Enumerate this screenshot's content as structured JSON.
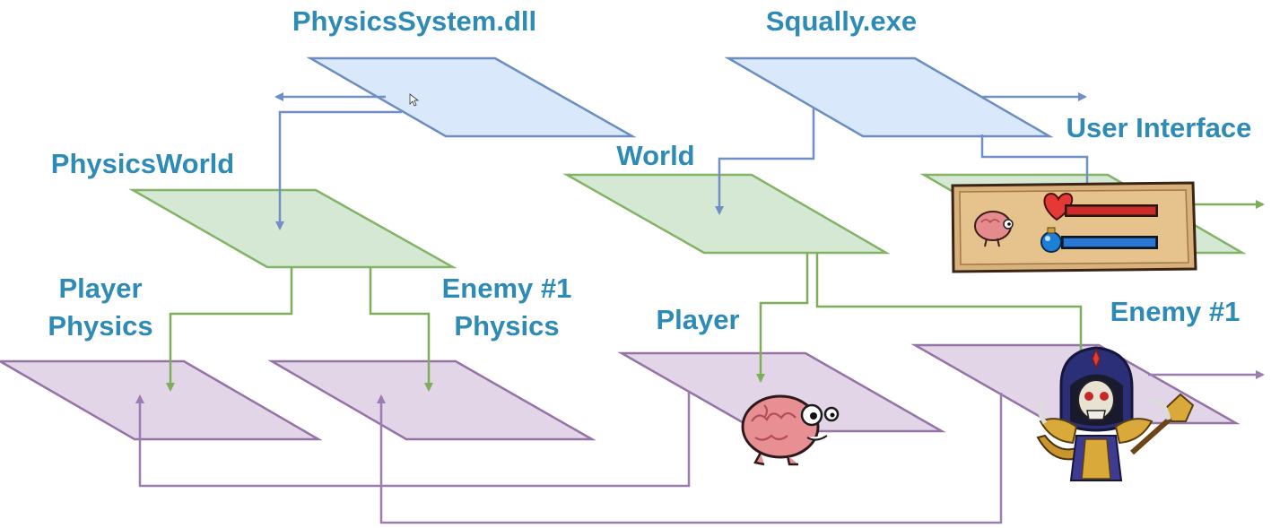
{
  "labels": {
    "physics_system": "PhysicsSystem.dll",
    "squally_exe": "Squally.exe",
    "physics_world": "PhysicsWorld",
    "world": "World",
    "user_interface": "User Interface",
    "player_physics_line1": "Player",
    "player_physics_line2": "Physics",
    "enemy_physics_line1": "Enemy #1",
    "enemy_physics_line2": "Physics",
    "player": "Player",
    "enemy": "Enemy #1"
  },
  "colors": {
    "label": "#2d8bb5",
    "blue_plane_fill": "#dae8fc",
    "blue_plane_stroke": "#6c8ebf",
    "green_plane_fill": "#d5e8d4",
    "green_plane_stroke": "#82b366",
    "purple_plane_fill": "#e1d5e7",
    "purple_plane_stroke": "#9673a6"
  },
  "icons": {
    "player_sprite": "brain-creature-icon",
    "enemy_sprite": "skeleton-warrior-icon",
    "ui_panel": "health-mana-panel-icon",
    "cursor": "mouse-cursor-icon"
  },
  "ui_panel": {
    "health_fill": 1.0,
    "mana_fill": 1.0
  }
}
